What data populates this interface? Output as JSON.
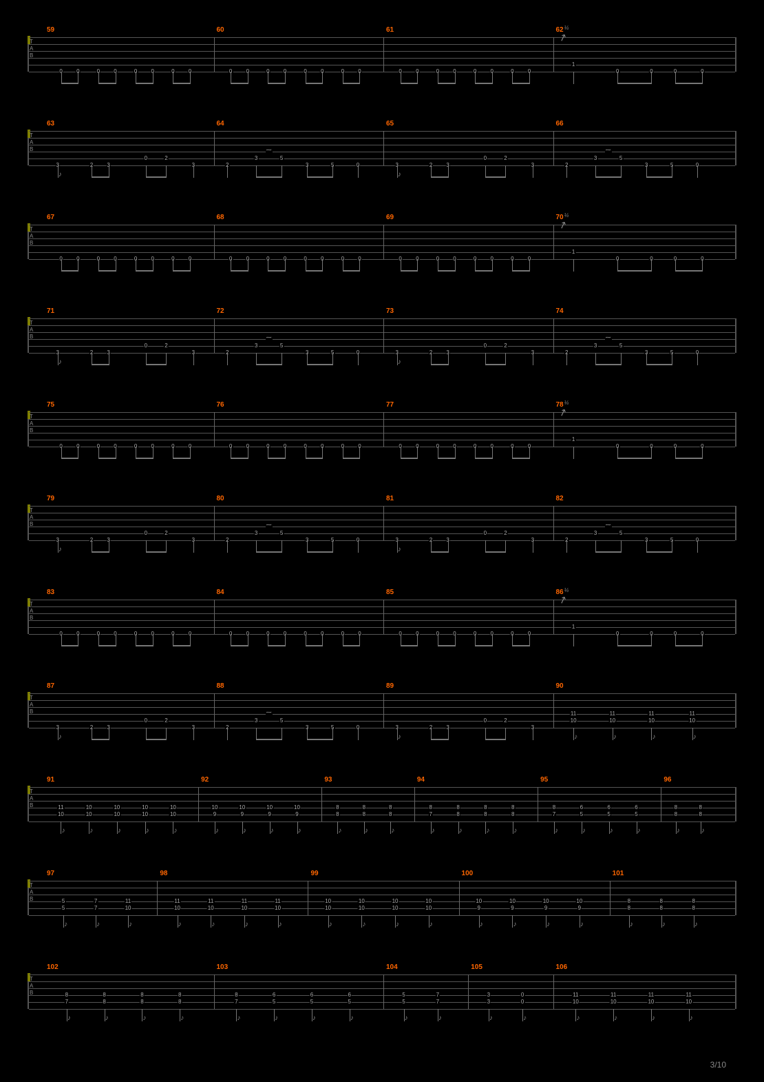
{
  "page_label": "3/10",
  "accent_color": "#ff6600",
  "line_color": "#555555",
  "note_color": "#aaaaaa",
  "background": "#000000",
  "tab_letters": [
    "T",
    "A",
    "B"
  ],
  "bend_symbol": "¼",
  "rows": [
    {
      "measures": [
        59,
        60,
        61,
        62
      ],
      "type": "riff_a",
      "last_bend": true
    },
    {
      "measures": [
        63,
        64,
        65,
        66
      ],
      "type": "riff_b"
    },
    {
      "measures": [
        67,
        68,
        69,
        70
      ],
      "type": "riff_a",
      "last_bend": true
    },
    {
      "measures": [
        71,
        72,
        73,
        74
      ],
      "type": "riff_b"
    },
    {
      "measures": [
        75,
        76,
        77,
        78
      ],
      "type": "riff_a",
      "last_bend": true
    },
    {
      "measures": [
        79,
        80,
        81,
        82
      ],
      "type": "riff_b"
    },
    {
      "measures": [
        83,
        84,
        85,
        86
      ],
      "type": "riff_a",
      "last_bend": true
    },
    {
      "measures": [
        87,
        88,
        89,
        90
      ],
      "type": "riff_b_to_chords",
      "chord_notes": [
        [
          "11",
          "10"
        ],
        [
          "11",
          "10"
        ],
        [
          "11",
          "10"
        ],
        [
          "11",
          "10"
        ]
      ]
    },
    {
      "measures": [
        91,
        92,
        93,
        94,
        95,
        96
      ],
      "type": "chord_run_1",
      "bars": [
        {
          "n": 5,
          "notes": [
            [
              "11",
              "10"
            ],
            [
              "10",
              "10"
            ],
            [
              "10",
              "10"
            ],
            [
              "10",
              "10"
            ],
            [
              "10",
              "10"
            ]
          ]
        },
        {
          "n": 4,
          "notes": [
            [
              "10",
              "9"
            ],
            [
              "10",
              "9"
            ],
            [
              "10",
              "9"
            ],
            [
              "10",
              "9"
            ]
          ]
        },
        {
          "n": 3,
          "notes": [
            [
              "8",
              "8"
            ],
            [
              "8",
              "8"
            ],
            [
              "8",
              "8"
            ]
          ]
        },
        {
          "n": 4,
          "notes": [
            [
              "8",
              "7"
            ],
            [
              "8",
              "8"
            ],
            [
              "8",
              "8"
            ],
            [
              "8",
              "8"
            ]
          ]
        },
        {
          "n": 4,
          "notes": [
            [
              "8",
              "7"
            ],
            [
              "6",
              "5"
            ],
            [
              "6",
              "5"
            ],
            [
              "6",
              "5"
            ]
          ]
        },
        {
          "n": 2,
          "notes": [
            [
              "8",
              "8"
            ],
            [
              "8",
              "8"
            ]
          ]
        }
      ]
    },
    {
      "measures": [
        97,
        98,
        99,
        100,
        101
      ],
      "type": "chord_run_2",
      "bars": [
        {
          "n": 3,
          "notes": [
            [
              "5",
              "5"
            ],
            [
              "7",
              "7"
            ],
            [
              "11",
              "10"
            ]
          ]
        },
        {
          "n": 4,
          "notes": [
            [
              "11",
              "10"
            ],
            [
              "11",
              "10"
            ],
            [
              "11",
              "10"
            ],
            [
              "11",
              "10"
            ]
          ]
        },
        {
          "n": 4,
          "notes": [
            [
              "10",
              "10"
            ],
            [
              "10",
              "10"
            ],
            [
              "10",
              "10"
            ],
            [
              "10",
              "10"
            ]
          ]
        },
        {
          "n": 4,
          "notes": [
            [
              "10",
              "9"
            ],
            [
              "10",
              "9"
            ],
            [
              "10",
              "9"
            ],
            [
              "10",
              "9"
            ]
          ]
        },
        {
          "n": 3,
          "notes": [
            [
              "8",
              "8"
            ],
            [
              "8",
              "8"
            ],
            [
              "8",
              "8"
            ]
          ]
        }
      ]
    },
    {
      "measures": [
        102,
        103,
        104,
        105,
        106
      ],
      "type": "chord_run_3",
      "bars": [
        {
          "n": 4,
          "notes": [
            [
              "8",
              "7"
            ],
            [
              "8",
              "8"
            ],
            [
              "8",
              "8"
            ],
            [
              "8",
              "8"
            ]
          ]
        },
        {
          "n": 4,
          "notes": [
            [
              "8",
              "7"
            ],
            [
              "6",
              "5"
            ],
            [
              "6",
              "5"
            ],
            [
              "6",
              "5"
            ]
          ]
        },
        {
          "n": 2,
          "notes": [
            [
              "5",
              "5"
            ],
            [
              "7",
              "7"
            ]
          ]
        },
        {
          "n": 2,
          "notes": [
            [
              "3",
              "3"
            ],
            [
              "0",
              "0"
            ]
          ]
        },
        {
          "n": 4,
          "notes": [
            [
              "11",
              "10"
            ],
            [
              "11",
              "10"
            ],
            [
              "11",
              "10"
            ],
            [
              "11",
              "10"
            ]
          ]
        }
      ]
    }
  ]
}
